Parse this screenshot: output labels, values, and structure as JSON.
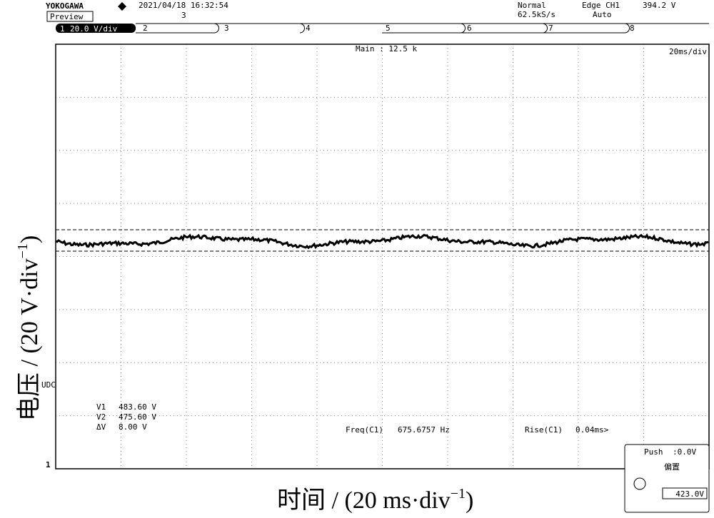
{
  "header": {
    "brand": "YOKOGAWA",
    "datetime": "2021/04/18 16:32:54",
    "count": "3",
    "mode": "Preview",
    "trigger_mode": "Normal",
    "sample_rate": "62.5kS/s",
    "trigger_source": "Edge CH1",
    "trigger_level": "394.2 V",
    "trigger_type": "Auto"
  },
  "channels": {
    "ch1": "1",
    "ch1_scale": "20.0 V/div",
    "ch2": "2",
    "ch3": "3",
    "ch4": "4",
    "ch5": "5",
    "ch6": "6",
    "ch7": "7",
    "ch8": "8"
  },
  "timebase": {
    "main": "Main : 12.5 k",
    "scale": "20ms/div"
  },
  "cursor": {
    "v1_label": "V1",
    "v1": "483.60 V",
    "v2_label": "V2",
    "v2": "475.60 V",
    "dv_label": "ΔV",
    "dv": "8.00 V"
  },
  "measure": {
    "freq_label": "Freq(C1)",
    "freq": "675.6757 Hz",
    "rise_label": "Rise(C1)",
    "rise": "0.04ms>"
  },
  "markers": {
    "ground": "1",
    "udc": "UDC"
  },
  "panel": {
    "push": "Push",
    "offset_set": ":0.0V",
    "title": "偏置",
    "value": "423.0V"
  },
  "axes": {
    "y_label": "电压 / (20 V·div",
    "y_sup": "−1",
    "y_close": ")",
    "x_label": "时间 / (20 ms·div",
    "x_sup": "−1",
    "x_close": ")"
  }
}
